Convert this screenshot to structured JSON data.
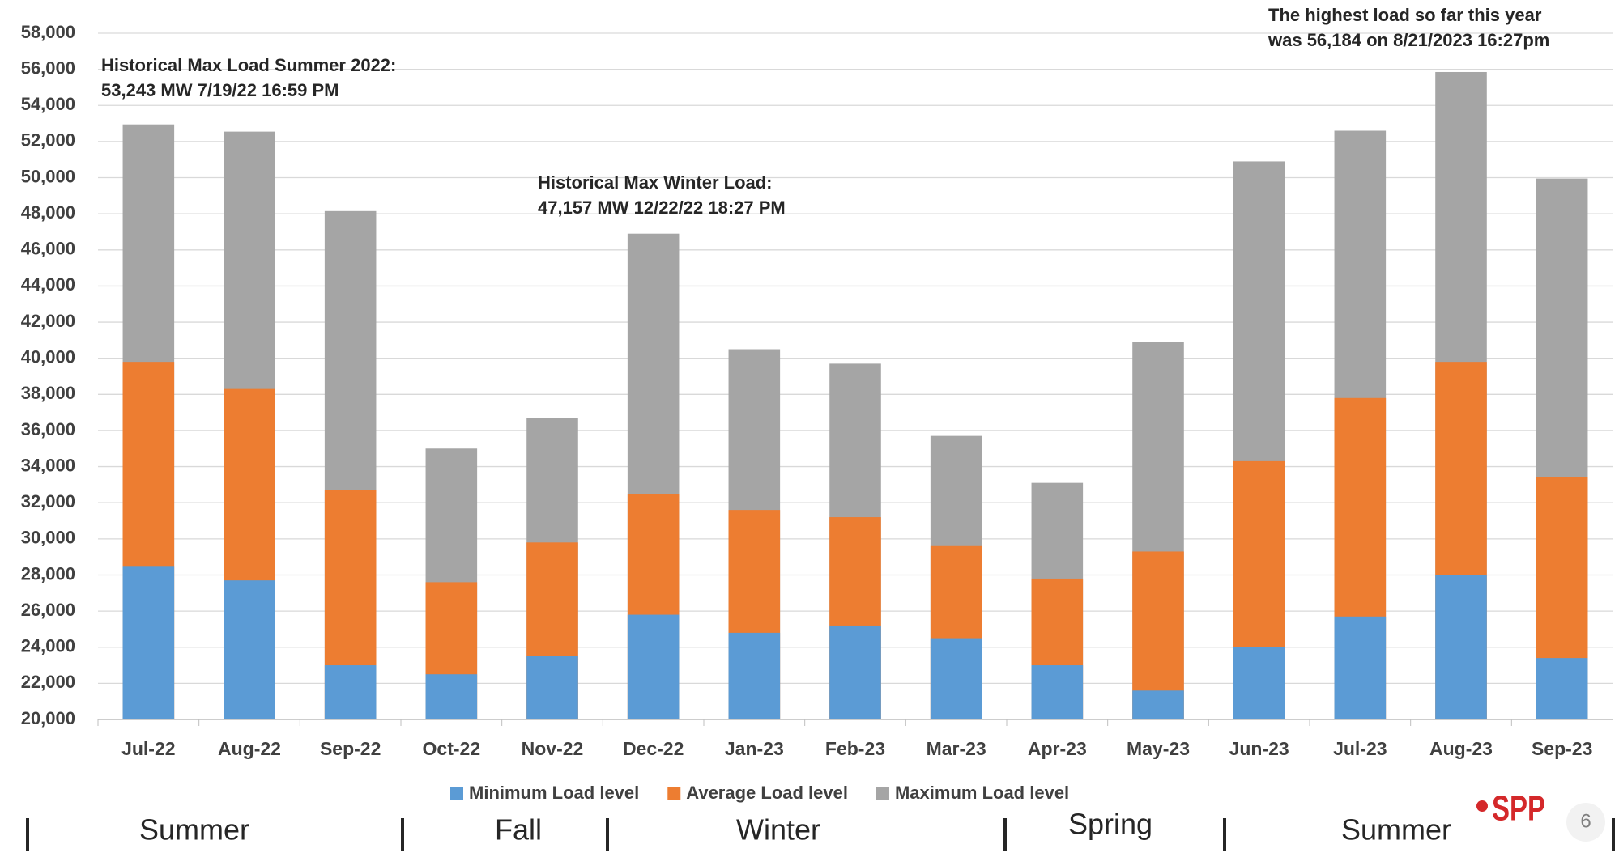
{
  "chart_data": {
    "type": "bar",
    "categories": [
      "Jul-22",
      "Aug-22",
      "Sep-22",
      "Oct-22",
      "Nov-22",
      "Dec-22",
      "Jan-23",
      "Feb-23",
      "Mar-23",
      "Apr-23",
      "May-23",
      "Jun-23",
      "Jul-23",
      "Aug-23",
      "Sep-23"
    ],
    "series": [
      {
        "name": "Maximum Load level",
        "color": "#a5a5a5",
        "values": [
          52950,
          52550,
          48150,
          35000,
          36700,
          46900,
          40500,
          39700,
          35700,
          33100,
          40900,
          50900,
          52600,
          55850,
          49950
        ]
      },
      {
        "name": "Average Load level",
        "color": "#ed7d31",
        "values": [
          39800,
          38300,
          32700,
          27600,
          29800,
          32500,
          31600,
          31200,
          29600,
          27800,
          29300,
          34300,
          37800,
          39800,
          33400
        ]
      },
      {
        "name": "Minimum Load level",
        "color": "#5b9bd5",
        "values": [
          28500,
          27700,
          23000,
          22500,
          23500,
          25800,
          24800,
          25200,
          24500,
          23000,
          21600,
          24000,
          25700,
          28000,
          23400
        ]
      }
    ],
    "legend_order": [
      "Minimum Load level",
      "Average Load level",
      "Maximum Load level"
    ],
    "ylim": [
      20000,
      58000
    ],
    "yticks": [
      {
        "value": 20000,
        "label": "20,000"
      },
      {
        "value": 22000,
        "label": "22,000"
      },
      {
        "value": 24000,
        "label": "24,000"
      },
      {
        "value": 26000,
        "label": "26,000"
      },
      {
        "value": 28000,
        "label": "28,000"
      },
      {
        "value": 30000,
        "label": "30,000"
      },
      {
        "value": 32000,
        "label": "32,000"
      },
      {
        "value": 34000,
        "label": "34,000"
      },
      {
        "value": 36000,
        "label": "36,000"
      },
      {
        "value": 38000,
        "label": "38,000"
      },
      {
        "value": 40000,
        "label": "40,000"
      },
      {
        "value": 42000,
        "label": "42,000"
      },
      {
        "value": 44000,
        "label": "44,000"
      },
      {
        "value": 46000,
        "label": "46,000"
      },
      {
        "value": 48000,
        "label": "48,000"
      },
      {
        "value": 50000,
        "label": "50,000"
      },
      {
        "value": 52000,
        "label": "52,000"
      },
      {
        "value": 54000,
        "label": "54,000"
      },
      {
        "value": 56000,
        "label": "56,000"
      },
      {
        "value": 58000,
        "label": "58,000"
      }
    ],
    "grid": true,
    "annotations": [
      [
        "Historical Max Load Summer 2022:",
        "53,243 MW 7/19/22 16:59 PM"
      ],
      [
        "Historical Max Winter Load:",
        "47,157 MW  12/22/22 18:27 PM"
      ],
      [
        "The highest load so far this year",
        "was 56,184 on 8/21/2023 16:27pm"
      ]
    ],
    "seasons": [
      "Summer",
      "Fall",
      "Winter",
      "Spring",
      "Summer"
    ]
  },
  "logo": "SPP",
  "page_number": "6"
}
